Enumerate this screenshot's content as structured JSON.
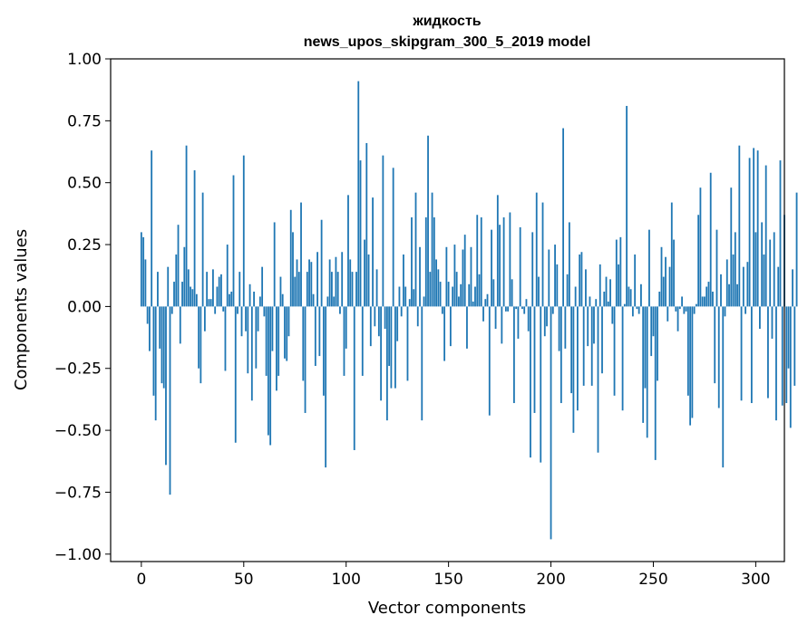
{
  "chart_data": {
    "type": "bar",
    "title": "жидкость",
    "subtitle": "news_upos_skipgram_300_5_2019 model",
    "xlabel": "Vector components",
    "ylabel": "Components values",
    "xlim": [
      -15,
      314
    ],
    "ylim": [
      -1.03,
      1.0
    ],
    "x_ticks": [
      0,
      50,
      100,
      150,
      200,
      250,
      300
    ],
    "x_tick_labels": [
      "0",
      "50",
      "100",
      "150",
      "200",
      "250",
      "300"
    ],
    "y_ticks": [
      1.0,
      0.75,
      0.5,
      0.25,
      0.0,
      -0.25,
      -0.5,
      -0.75,
      -1.0
    ],
    "y_tick_labels": [
      "1.00",
      "0.75",
      "0.50",
      "0.25",
      "0.00",
      "−0.25",
      "−0.50",
      "−0.75",
      "−1.00"
    ],
    "bar_color": "#1f77b4",
    "grid": false,
    "legend": "none",
    "series": [
      {
        "name": "жидкость",
        "values": [
          0.3,
          0.28,
          0.19,
          -0.07,
          -0.18,
          0.63,
          -0.36,
          -0.46,
          0.14,
          -0.17,
          -0.31,
          -0.33,
          -0.64,
          0.16,
          -0.76,
          -0.03,
          0.1,
          0.21,
          0.33,
          -0.15,
          0.1,
          0.24,
          0.65,
          0.15,
          0.08,
          0.07,
          0.55,
          0.05,
          -0.25,
          -0.31,
          0.46,
          -0.1,
          0.14,
          0.03,
          0.03,
          0.15,
          -0.03,
          0.08,
          0.12,
          0.13,
          -0.02,
          -0.26,
          0.25,
          0.05,
          0.06,
          0.53,
          -0.55,
          -0.03,
          0.14,
          -0.12,
          0.61,
          -0.1,
          -0.27,
          0.09,
          -0.38,
          0.06,
          -0.25,
          -0.1,
          0.04,
          0.16,
          -0.04,
          -0.28,
          -0.52,
          -0.56,
          -0.18,
          0.34,
          -0.34,
          -0.28,
          0.12,
          0.05,
          -0.21,
          -0.22,
          -0.12,
          0.39,
          0.3,
          0.12,
          0.19,
          0.14,
          0.42,
          -0.3,
          -0.43,
          0.14,
          0.19,
          0.18,
          0.05,
          -0.24,
          0.22,
          -0.2,
          0.35,
          -0.36,
          -0.65,
          0.04,
          0.19,
          0.14,
          0.04,
          0.2,
          0.14,
          -0.03,
          0.22,
          -0.28,
          -0.17,
          0.45,
          0.19,
          0.14,
          -0.58,
          0.14,
          0.91,
          0.59,
          -0.28,
          0.27,
          0.66,
          0.21,
          -0.16,
          0.44,
          -0.08,
          0.15,
          -0.12,
          -0.38,
          0.61,
          -0.09,
          -0.46,
          -0.24,
          -0.33,
          0.56,
          -0.33,
          -0.14,
          0.08,
          -0.04,
          0.21,
          0.08,
          -0.3,
          0.03,
          0.36,
          0.07,
          0.46,
          -0.08,
          0.24,
          -0.46,
          0.04,
          0.36,
          0.69,
          0.14,
          0.46,
          0.36,
          0.19,
          0.15,
          0.1,
          -0.03,
          -0.22,
          0.24,
          0.1,
          -0.16,
          0.08,
          0.25,
          0.14,
          0.04,
          0.09,
          0.23,
          0.29,
          -0.17,
          0.09,
          0.24,
          0.02,
          0.08,
          0.37,
          0.13,
          0.36,
          -0.06,
          0.03,
          0.05,
          -0.44,
          0.31,
          0.11,
          -0.09,
          0.45,
          0.33,
          -0.15,
          0.36,
          -0.02,
          -0.02,
          0.38,
          0.11,
          -0.39,
          -0.01,
          -0.13,
          0.32,
          -0.01,
          -0.03,
          0.03,
          -0.1,
          -0.61,
          0.3,
          -0.43,
          0.46,
          0.12,
          -0.63,
          0.42,
          -0.12,
          -0.08,
          0.23,
          -0.94,
          -0.03,
          0.25,
          0.17,
          -0.18,
          -0.39,
          0.72,
          -0.17,
          0.13,
          0.34,
          -0.35,
          -0.51,
          0.08,
          -0.42,
          0.21,
          0.22,
          -0.32,
          0.15,
          -0.16,
          0.04,
          -0.32,
          -0.15,
          0.03,
          -0.59,
          0.17,
          -0.27,
          0.06,
          0.12,
          0.02,
          0.11,
          -0.07,
          -0.36,
          0.27,
          0.17,
          0.28,
          -0.42,
          0.01,
          0.81,
          0.08,
          0.07,
          -0.04,
          0.21,
          -0.01,
          -0.03,
          0.09,
          -0.47,
          -0.33,
          -0.53,
          0.31,
          -0.2,
          -0.12,
          -0.62,
          -0.3,
          0.06,
          0.24,
          0.12,
          0.2,
          -0.06,
          0.16,
          0.42,
          0.27,
          -0.02,
          -0.1,
          -0.01,
          0.04,
          -0.03,
          -0.02,
          -0.36,
          -0.48,
          -0.45,
          -0.03,
          0.01,
          0.37,
          0.48,
          0.04,
          0.04,
          0.08,
          0.1,
          0.54,
          0.06,
          -0.31,
          0.31,
          -0.41,
          0.13,
          -0.65,
          -0.04,
          0.19,
          0.09,
          0.48,
          0.21,
          0.3,
          0.09,
          0.65,
          -0.38,
          0.16,
          -0.03,
          0.18,
          0.6,
          -0.39,
          0.64,
          0.3,
          0.63,
          -0.09,
          0.34,
          0.21,
          0.57,
          -0.37,
          0.27,
          -0.13,
          0.3,
          -0.46,
          0.16,
          0.59,
          -0.4,
          0.37,
          -0.39,
          -0.25,
          -0.49,
          0.15,
          -0.32,
          0.46
        ]
      }
    ]
  }
}
